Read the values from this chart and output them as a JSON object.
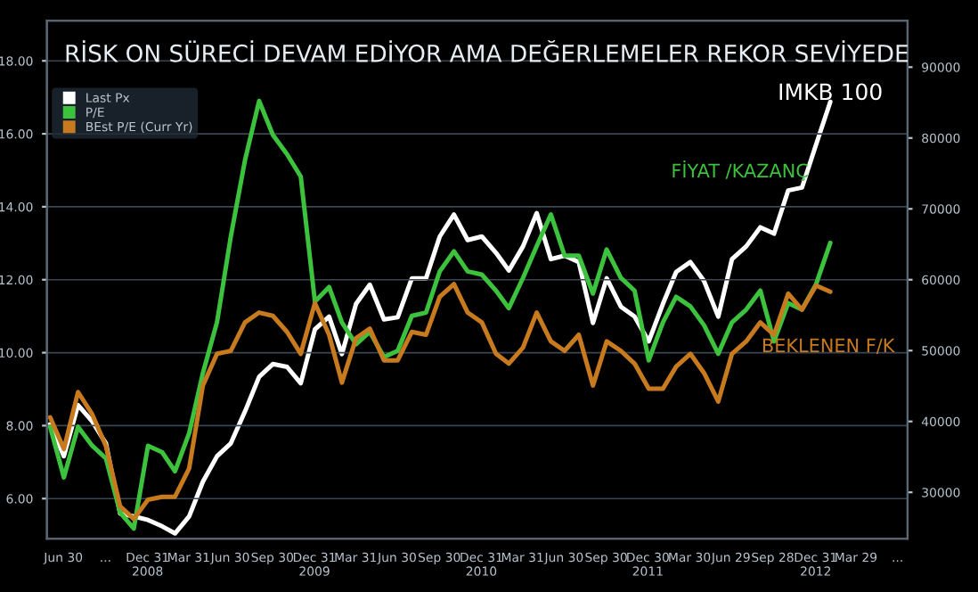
{
  "chart_data": {
    "type": "line",
    "title": "RİSK ON SÜRECİ DEVAM EDİYOR AMA DEĞERLEMELER REKOR SEVİYEDE",
    "x": [
      "2008-06",
      "2008-07",
      "2008-08",
      "2008-09",
      "2008-10",
      "2008-11",
      "2008-12",
      "2009-01",
      "2009-02",
      "2009-03",
      "2009-04",
      "2009-05",
      "2009-06",
      "2009-07",
      "2009-08",
      "2009-09",
      "2009-10",
      "2009-11",
      "2009-12",
      "2010-01",
      "2010-02",
      "2010-03",
      "2010-04",
      "2010-05",
      "2010-06",
      "2010-07",
      "2010-08",
      "2010-09",
      "2010-10",
      "2010-11",
      "2010-12",
      "2011-01",
      "2011-02",
      "2011-03",
      "2011-04",
      "2011-05",
      "2011-06",
      "2011-07",
      "2011-08",
      "2011-09",
      "2011-10",
      "2011-11",
      "2011-12",
      "2012-01",
      "2012-02",
      "2012-03",
      "2012-04",
      "2012-05",
      "2012-06",
      "2012-07",
      "2012-08",
      "2012-09",
      "2012-10",
      "2012-11",
      "2012-12",
      "2013-01",
      "2013-02"
    ],
    "series": [
      {
        "name": "Last Px",
        "color": "#ffffff",
        "axis": "y2",
        "values": [
          39600,
          35100,
          42300,
          40000,
          36900,
          27000,
          26600,
          26100,
          25200,
          24200,
          26600,
          31500,
          35100,
          36900,
          41400,
          46300,
          48100,
          47700,
          45400,
          53000,
          54800,
          49500,
          56600,
          59300,
          54400,
          54700,
          60200,
          60200,
          66100,
          69200,
          65600,
          66100,
          63800,
          61300,
          64700,
          69400,
          62900,
          63400,
          62500,
          53900,
          60200,
          56200,
          54800,
          51300,
          56600,
          61100,
          62500,
          59800,
          54800,
          62900,
          64700,
          67400,
          66500,
          72600,
          73000,
          79100,
          85100
        ]
      },
      {
        "name": "P/E",
        "color": "#3cc23c",
        "values": [
          7.97,
          6.58,
          7.97,
          7.45,
          7.1,
          5.62,
          5.18,
          7.45,
          7.27,
          6.75,
          7.79,
          9.44,
          10.84,
          13.18,
          15.27,
          16.9,
          15.97,
          15.44,
          14.83,
          11.4,
          11.8,
          10.83,
          10.23,
          10.57,
          9.88,
          10.05,
          11.01,
          11.1,
          12.23,
          12.78,
          12.23,
          12.14,
          11.7,
          11.22,
          12.05,
          12.92,
          13.79,
          12.66,
          12.66,
          11.62,
          12.83,
          12.05,
          11.7,
          9.79,
          10.83,
          11.53,
          11.27,
          10.75,
          9.97,
          10.83,
          11.18,
          11.7,
          10.31,
          11.36,
          11.18,
          11.88,
          13.01
        ]
      },
      {
        "name": "BEst P/E (Curr Yr)",
        "color": "#c87a1e",
        "values": [
          8.23,
          7.36,
          8.92,
          8.31,
          7.44,
          5.79,
          5.44,
          5.97,
          6.05,
          6.05,
          6.83,
          9.1,
          9.97,
          10.05,
          10.83,
          11.1,
          11.01,
          10.57,
          9.97,
          11.36,
          10.49,
          9.18,
          10.4,
          10.66,
          9.79,
          9.79,
          10.57,
          10.49,
          11.53,
          11.88,
          11.1,
          10.83,
          9.97,
          9.7,
          10.14,
          11.1,
          10.31,
          10.05,
          10.49,
          9.1,
          10.31,
          10.05,
          9.7,
          9.01,
          9.01,
          9.62,
          9.97,
          9.44,
          8.66,
          9.97,
          10.31,
          10.83,
          10.49,
          11.62,
          11.18,
          11.84,
          11.67
        ]
      }
    ],
    "annotations": [
      {
        "text": "IMKB 100",
        "x": "2013-02",
        "y": 17.1
      },
      "FİYAT /KAZANÇ",
      "BEKLENEN F/K"
    ],
    "xlim": [
      "2008-05-25",
      "2013-07-20"
    ],
    "xticks": [
      {
        "value": "2008-06-30",
        "label": "Jun 30"
      },
      {
        "value": "2008-09-30",
        "label": "..."
      },
      {
        "value": "2008-12-31",
        "label": "Dec 31\n2008"
      },
      {
        "value": "2009-03-31",
        "label": "Mar 31"
      },
      {
        "value": "2009-06-30",
        "label": "Jun 30"
      },
      {
        "value": "2009-09-30",
        "label": "Sep 30"
      },
      {
        "value": "2009-12-31",
        "label": "Dec 31\n2009"
      },
      {
        "value": "2010-03-31",
        "label": "Mar 31"
      },
      {
        "value": "2010-06-30",
        "label": "Jun 30"
      },
      {
        "value": "2010-09-30",
        "label": "Sep 30"
      },
      {
        "value": "2010-12-31",
        "label": "Dec 31\n2010"
      },
      {
        "value": "2011-03-31",
        "label": "Mar 31"
      },
      {
        "value": "2011-06-30",
        "label": "Jun 30"
      },
      {
        "value": "2011-09-30",
        "label": "Sep 30"
      },
      {
        "value": "2011-12-30",
        "label": "Dec 30\n2011"
      },
      {
        "value": "2012-03-30",
        "label": "Mar 30"
      },
      {
        "value": "2012-06-29",
        "label": "Jun 29"
      },
      {
        "value": "2012-09-28",
        "label": "Sep 28"
      },
      {
        "value": "2012-12-31",
        "label": "Dec 31\n2012"
      },
      {
        "value": "2013-03-29",
        "label": "Mar 29"
      },
      {
        "value": "2013-06-28",
        "label": "..."
      }
    ],
    "ylim": [
      4.9,
      19.1
    ],
    "yticks": [
      {
        "value": 6,
        "label": "6.00"
      },
      {
        "value": 8,
        "label": "8.00"
      },
      {
        "value": 10,
        "label": "10.00"
      },
      {
        "value": 12,
        "label": "12.00"
      },
      {
        "value": 14,
        "label": "14.00"
      },
      {
        "value": 16,
        "label": "16.00"
      },
      {
        "value": 18,
        "label": "18.00"
      }
    ],
    "y2lim": [
      23450,
      96550
    ],
    "y2ticks": [
      30000,
      40000,
      50000,
      60000,
      70000,
      80000,
      90000
    ],
    "grid": "y",
    "legend": "top left"
  }
}
